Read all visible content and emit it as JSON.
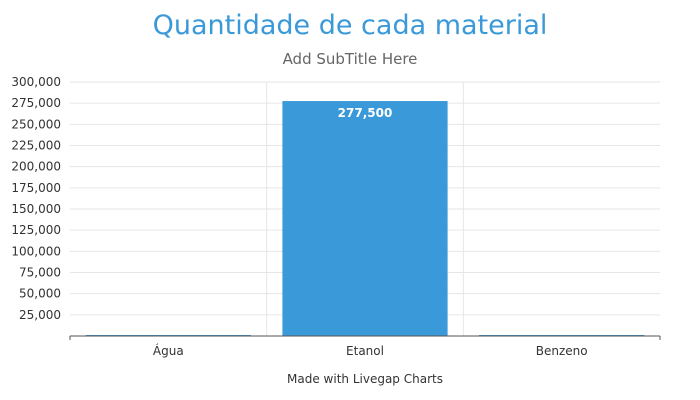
{
  "chart_data": {
    "type": "bar",
    "title": "Quantidade de cada material",
    "subtitle": "Add SubTitle Here",
    "categories": [
      "Água",
      "Etanol",
      "Benzeno"
    ],
    "values": [
      0,
      277500,
      0
    ],
    "data_labels": [
      "",
      "277,500",
      ""
    ],
    "ylim": [
      0,
      300000
    ],
    "yticks": [
      25000,
      50000,
      75000,
      100000,
      125000,
      150000,
      175000,
      200000,
      225000,
      250000,
      275000,
      300000
    ],
    "ytick_labels": [
      "25,000",
      "50,000",
      "75,000",
      "100,000",
      "125,000",
      "150,000",
      "175,000",
      "200,000",
      "225,000",
      "250,000",
      "275,000",
      "300,000"
    ],
    "bar_color": "#3a99d9",
    "grid": true,
    "legend": "none"
  },
  "footer": "Made with Livegap Charts"
}
